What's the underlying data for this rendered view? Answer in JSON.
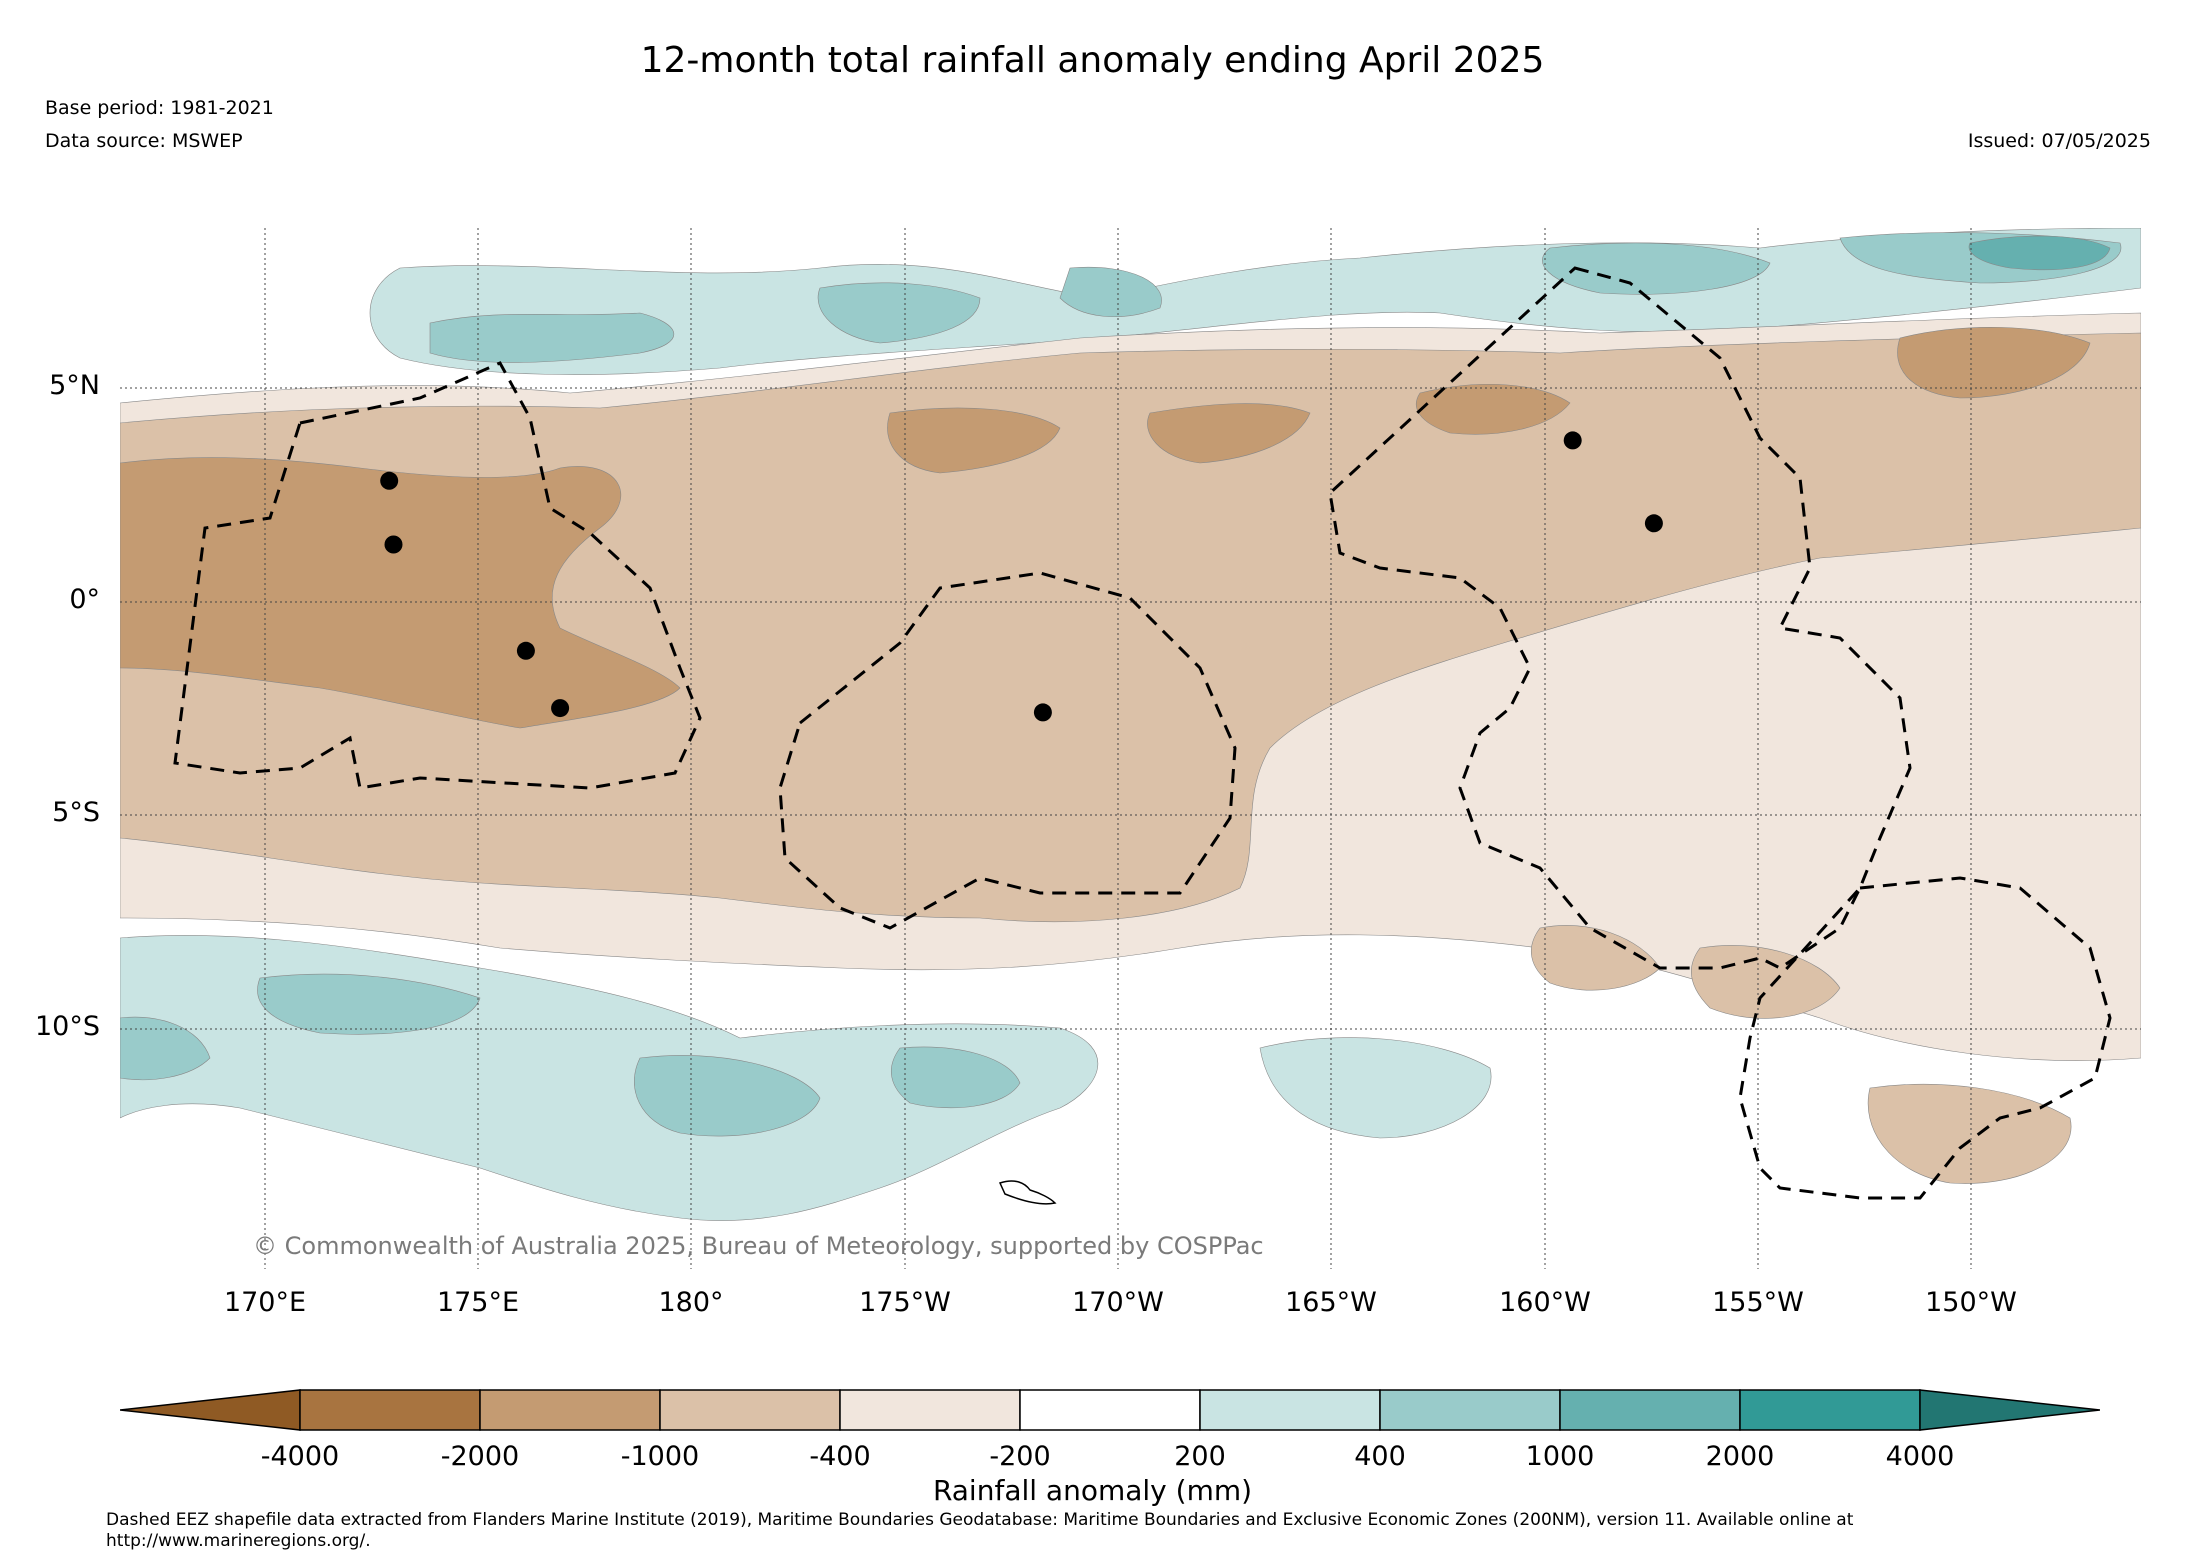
{
  "title": "12-month total rainfall anomaly ending April 2025",
  "base_period": "Base period: 1981-2021",
  "data_source": "Data source: MSWEP",
  "issued": "Issued: 07/05/2025",
  "copyright": "© Commonwealth of Australia 2025, Bureau of Meteorology, supported by COSPPac",
  "colorbar": {
    "title": "Rainfall anomaly (mm)",
    "tick_labels": [
      "-4000",
      "-2000",
      "-1000",
      "-400",
      "-200",
      "200",
      "400",
      "1000",
      "2000",
      "4000"
    ],
    "colors": [
      "#8f5a24",
      "#a87440",
      "#c49b72",
      "#dbc1a8",
      "#f1e6dd",
      "#ffffff",
      "#c9e4e3",
      "#99cbca",
      "#65b0af",
      "#319a96",
      "#227672"
    ]
  },
  "map": {
    "longitude_labels": [
      "170°E",
      "175°E",
      "180°",
      "175°W",
      "170°W",
      "165°W",
      "160°W",
      "155°W",
      "150°W"
    ],
    "latitude_labels": [
      "5°N",
      "0°",
      "5°S",
      "10°S"
    ],
    "lon_range": [
      166.6,
      213.9
    ],
    "lat_range": [
      -15.9,
      8.6
    ],
    "station_markers": [
      {
        "lon": 172.9,
        "lat": 2.65
      },
      {
        "lon": 173.0,
        "lat": 1.15
      },
      {
        "lon": 176.1,
        "lat": -1.35
      },
      {
        "lon": 176.9,
        "lat": -2.7
      },
      {
        "lon": 188.2,
        "lat": -2.8
      },
      {
        "lon": 200.6,
        "lat": 3.6
      },
      {
        "lon": 202.5,
        "lat": 1.65
      }
    ]
  },
  "footnote": "Dashed EEZ shapefile data extracted from Flanders Marine Institute (2019), Maritime Boundaries Geodatabase: Maritime Boundaries and Exclusive Economic Zones (200NM), version 11. Available online at http://www.marineregions.org/."
}
